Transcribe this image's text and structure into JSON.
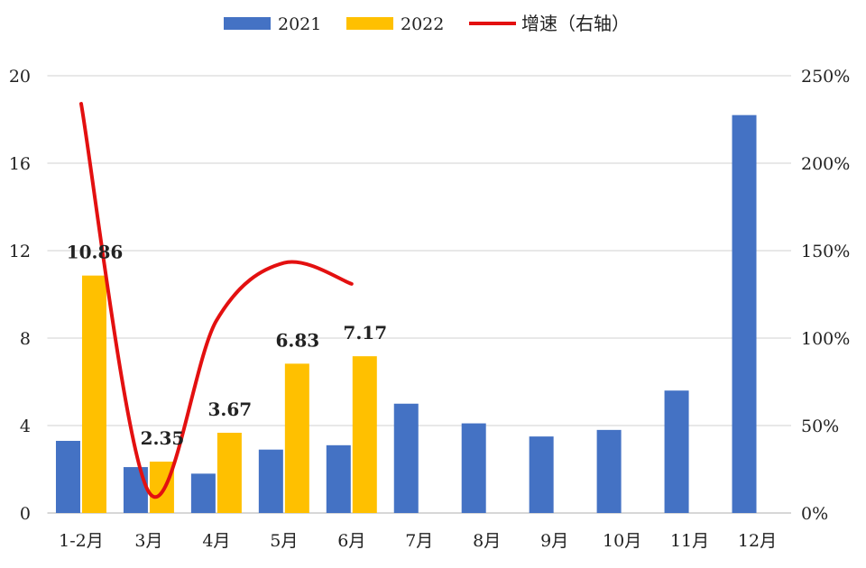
{
  "chart_data": {
    "type": "bar",
    "categories": [
      "1-2月",
      "3月",
      "4月",
      "5月",
      "6月",
      "7月",
      "8月",
      "9月",
      "10月",
      "11月",
      "12月"
    ],
    "series": [
      {
        "name": "2021",
        "type": "bar",
        "axis": "left",
        "color": "#4472C4",
        "values": [
          3.3,
          2.1,
          1.8,
          2.9,
          3.1,
          5.0,
          4.1,
          3.5,
          3.8,
          5.6,
          18.2
        ]
      },
      {
        "name": "2022",
        "type": "bar",
        "axis": "left",
        "color": "#FFC000",
        "values": [
          10.86,
          2.35,
          3.67,
          6.83,
          7.17,
          null,
          null,
          null,
          null,
          null,
          null
        ],
        "data_labels": [
          "10.86",
          "2.35",
          "3.67",
          "6.83",
          "7.17"
        ]
      },
      {
        "name": "增速（右轴）",
        "type": "line",
        "axis": "right",
        "color": "#E31010",
        "values": [
          234,
          12,
          110,
          143,
          131,
          null,
          null,
          null,
          null,
          null,
          null
        ]
      }
    ],
    "ylim": [
      0,
      20
    ],
    "yticks": [
      "0",
      "4",
      "8",
      "12",
      "16",
      "20"
    ],
    "y2lim": [
      0,
      250
    ],
    "y2ticks": [
      "0%",
      "50%",
      "100%",
      "150%",
      "200%",
      "250%"
    ],
    "grid": true,
    "legend_position": "top"
  }
}
